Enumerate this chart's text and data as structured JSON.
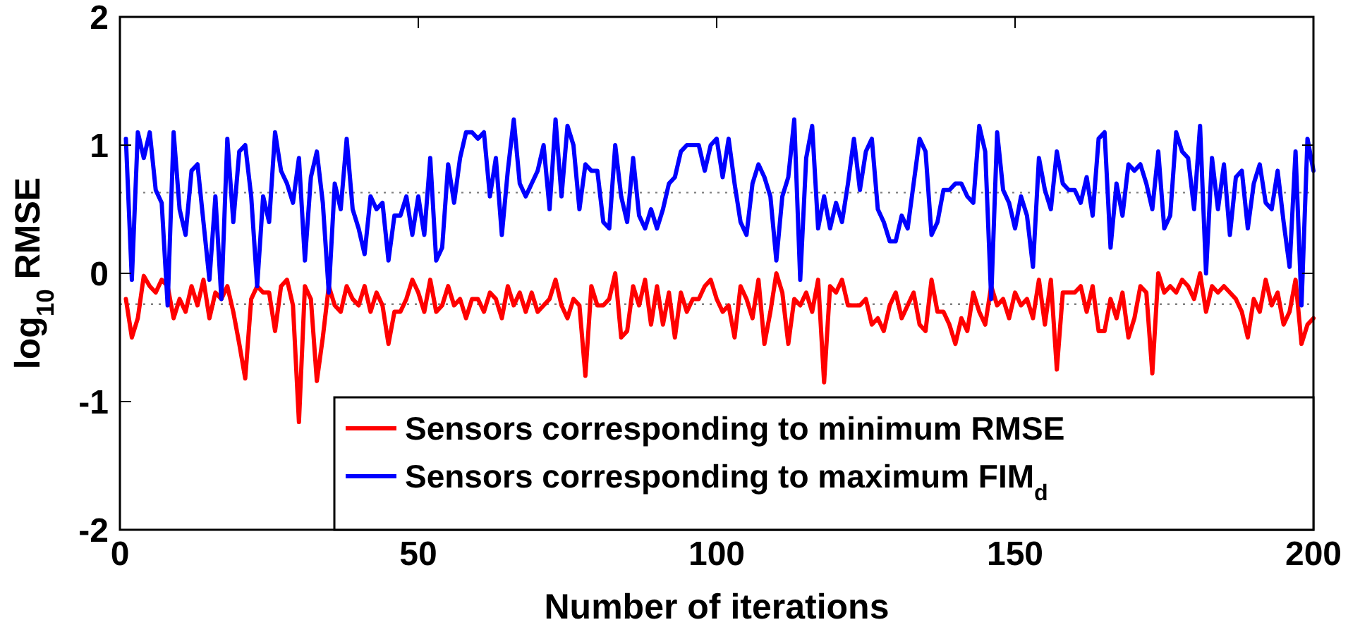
{
  "chart_data": {
    "type": "line",
    "xlabel": "Number of iterations",
    "ylabel": "log$_{10}$ RMSE",
    "x": [
      1,
      2,
      3,
      4,
      5,
      6,
      7,
      8,
      9,
      10,
      11,
      12,
      13,
      14,
      15,
      16,
      17,
      18,
      19,
      20,
      21,
      22,
      23,
      24,
      25,
      26,
      27,
      28,
      29,
      30,
      31,
      32,
      33,
      34,
      35,
      36,
      37,
      38,
      39,
      40,
      41,
      42,
      43,
      44,
      45,
      46,
      47,
      48,
      49,
      50,
      51,
      52,
      53,
      54,
      55,
      56,
      57,
      58,
      59,
      60,
      61,
      62,
      63,
      64,
      65,
      66,
      67,
      68,
      69,
      70,
      71,
      72,
      73,
      74,
      75,
      76,
      77,
      78,
      79,
      80,
      81,
      82,
      83,
      84,
      85,
      86,
      87,
      88,
      89,
      90,
      91,
      92,
      93,
      94,
      95,
      96,
      97,
      98,
      99,
      100,
      101,
      102,
      103,
      104,
      105,
      106,
      107,
      108,
      109,
      110,
      111,
      112,
      113,
      114,
      115,
      116,
      117,
      118,
      119,
      120,
      121,
      122,
      123,
      124,
      125,
      126,
      127,
      128,
      129,
      130,
      131,
      132,
      133,
      134,
      135,
      136,
      137,
      138,
      139,
      140,
      141,
      142,
      143,
      144,
      145,
      146,
      147,
      148,
      149,
      150,
      151,
      152,
      153,
      154,
      155,
      156,
      157,
      158,
      159,
      160,
      161,
      162,
      163,
      164,
      165,
      166,
      167,
      168,
      169,
      170,
      171,
      172,
      173,
      174,
      175,
      176,
      177,
      178,
      179,
      180,
      181,
      182,
      183,
      184,
      185,
      186,
      187,
      188,
      189,
      190,
      191,
      192,
      193,
      194,
      195,
      196,
      197,
      198,
      199,
      200
    ],
    "series": [
      {
        "name": "Sensors corresponding to minimum RMSE",
        "color": "#ff0000",
        "values": [
          -0.2,
          -0.5,
          -0.35,
          -0.02,
          -0.1,
          -0.15,
          -0.05,
          -0.1,
          -0.35,
          -0.2,
          -0.3,
          -0.1,
          -0.25,
          -0.05,
          -0.35,
          -0.15,
          -0.2,
          -0.1,
          -0.3,
          -0.55,
          -0.82,
          -0.2,
          -0.1,
          -0.15,
          -0.15,
          -0.45,
          -0.1,
          -0.05,
          -0.25,
          -1.16,
          -0.1,
          -0.2,
          -0.84,
          -0.5,
          -0.1,
          -0.25,
          -0.3,
          -0.1,
          -0.2,
          -0.25,
          -0.1,
          -0.3,
          -0.15,
          -0.25,
          -0.55,
          -0.3,
          -0.3,
          -0.2,
          -0.05,
          -0.15,
          -0.3,
          -0.05,
          -0.3,
          -0.25,
          -0.1,
          -0.25,
          -0.2,
          -0.35,
          -0.2,
          -0.2,
          -0.3,
          -0.15,
          -0.2,
          -0.35,
          -0.1,
          -0.25,
          -0.15,
          -0.3,
          -0.15,
          -0.3,
          -0.25,
          -0.2,
          -0.05,
          -0.25,
          -0.35,
          -0.2,
          -0.25,
          -0.8,
          -0.1,
          -0.25,
          -0.25,
          -0.2,
          0.0,
          -0.5,
          -0.45,
          -0.1,
          -0.25,
          -0.05,
          -0.4,
          -0.1,
          -0.4,
          -0.15,
          -0.5,
          -0.15,
          -0.3,
          -0.2,
          -0.2,
          -0.1,
          -0.05,
          -0.2,
          -0.3,
          -0.25,
          -0.5,
          -0.1,
          -0.2,
          -0.35,
          -0.05,
          -0.55,
          -0.3,
          0.0,
          -0.15,
          -0.55,
          -0.2,
          -0.25,
          -0.15,
          -0.3,
          -0.05,
          -0.85,
          -0.1,
          -0.15,
          -0.05,
          -0.25,
          -0.25,
          -0.25,
          -0.2,
          -0.4,
          -0.35,
          -0.45,
          -0.25,
          -0.15,
          -0.35,
          -0.25,
          -0.15,
          -0.4,
          -0.45,
          -0.05,
          -0.3,
          -0.3,
          -0.4,
          -0.55,
          -0.35,
          -0.45,
          -0.15,
          -0.3,
          -0.4,
          -0.1,
          -0.25,
          -0.2,
          -0.35,
          -0.15,
          -0.25,
          -0.2,
          -0.35,
          -0.05,
          -0.4,
          -0.05,
          -0.75,
          -0.15,
          -0.15,
          -0.15,
          -0.1,
          -0.3,
          -0.1,
          -0.45,
          -0.45,
          -0.2,
          -0.35,
          -0.15,
          -0.5,
          -0.35,
          -0.1,
          -0.15,
          -0.78,
          0.0,
          -0.15,
          -0.1,
          -0.15,
          -0.05,
          -0.1,
          -0.2,
          0.0,
          -0.3,
          -0.1,
          -0.15,
          -0.1,
          -0.15,
          -0.2,
          -0.3,
          -0.5,
          -0.2,
          -0.3,
          -0.05,
          -0.25,
          -0.15,
          -0.4,
          -0.3,
          -0.05,
          -0.55,
          -0.4,
          -0.35
        ]
      },
      {
        "name": "Sensors corresponding to maximum FIM$_{d}$",
        "color": "#0000ff",
        "values": [
          1.05,
          -0.05,
          1.1,
          0.9,
          1.1,
          0.65,
          0.55,
          -0.25,
          1.1,
          0.5,
          0.3,
          0.8,
          0.85,
          0.4,
          -0.05,
          0.6,
          -0.2,
          1.05,
          0.4,
          0.95,
          1.0,
          0.6,
          -0.1,
          0.6,
          0.4,
          1.1,
          0.8,
          0.7,
          0.55,
          0.9,
          0.1,
          0.75,
          0.95,
          0.55,
          -0.15,
          0.7,
          0.5,
          1.05,
          0.5,
          0.35,
          0.15,
          0.6,
          0.5,
          0.55,
          0.1,
          0.45,
          0.45,
          0.6,
          0.3,
          0.6,
          0.3,
          0.9,
          0.1,
          0.2,
          0.85,
          0.55,
          0.9,
          1.1,
          1.1,
          1.05,
          1.1,
          0.6,
          0.9,
          0.3,
          0.8,
          1.2,
          0.7,
          0.6,
          0.7,
          0.8,
          1.0,
          0.5,
          1.2,
          0.6,
          1.15,
          1.0,
          0.5,
          0.85,
          0.8,
          0.8,
          0.4,
          0.35,
          1.0,
          0.6,
          0.4,
          0.9,
          0.45,
          0.35,
          0.5,
          0.35,
          0.5,
          0.7,
          0.75,
          0.95,
          1.0,
          1.0,
          1.0,
          0.8,
          1.0,
          1.05,
          0.75,
          1.05,
          0.7,
          0.4,
          0.3,
          0.7,
          0.85,
          0.75,
          0.6,
          0.1,
          0.6,
          0.75,
          1.2,
          -0.05,
          0.9,
          1.15,
          0.35,
          0.6,
          0.35,
          0.55,
          0.4,
          0.7,
          1.05,
          0.65,
          0.95,
          1.05,
          0.5,
          0.4,
          0.25,
          0.25,
          0.45,
          0.35,
          0.7,
          1.05,
          0.95,
          0.3,
          0.4,
          0.65,
          0.65,
          0.7,
          0.7,
          0.6,
          0.55,
          1.15,
          0.95,
          -0.2,
          1.1,
          0.65,
          0.55,
          0.35,
          0.6,
          0.45,
          0.05,
          0.9,
          0.65,
          0.5,
          0.95,
          0.7,
          0.65,
          0.65,
          0.55,
          0.75,
          0.45,
          1.05,
          1.1,
          0.2,
          0.7,
          0.45,
          0.85,
          0.8,
          0.85,
          0.7,
          0.5,
          0.95,
          0.35,
          0.45,
          1.1,
          0.95,
          0.9,
          0.5,
          1.15,
          0.0,
          0.9,
          0.5,
          0.85,
          0.3,
          0.75,
          0.8,
          0.35,
          0.7,
          0.85,
          0.55,
          0.5,
          0.8,
          0.4,
          0.05,
          0.95,
          -0.25,
          1.05,
          0.8
        ]
      }
    ],
    "xlim": [
      0,
      200
    ],
    "xticks": [
      0,
      50,
      100,
      150,
      200
    ],
    "ylim": [
      -2,
      2
    ],
    "yticks": [
      -2,
      -1,
      0,
      1,
      2
    ],
    "ref_lines": [
      {
        "axis": "y",
        "value": 0.63,
        "color": "#808080",
        "line_style": "dotted"
      },
      {
        "axis": "y",
        "value": -0.24,
        "color": "#808080",
        "line_style": "dotted"
      }
    ],
    "legend": "bottom right",
    "grid": false,
    "marker": "none",
    "line_style": "solid"
  }
}
